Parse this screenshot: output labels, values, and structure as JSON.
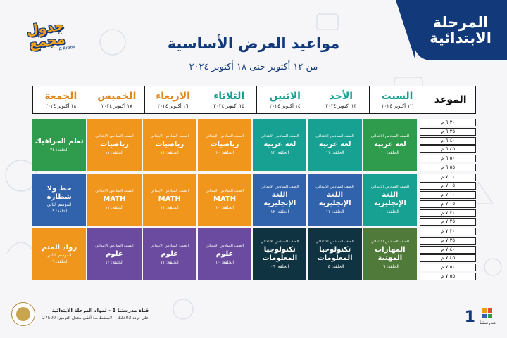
{
  "badge": {
    "line1": "المرحلة",
    "line2": "الابتدائية"
  },
  "logo": {
    "line1": "جدول",
    "line2": "مجمع",
    "line3": "A Arabic"
  },
  "title": "مواعيد العرض الأساسية",
  "subtitle": "من ١٢ أكتوبر حتى ١٨ أكتوبر ٢٠٢٤",
  "header": {
    "mawid": "الموعد",
    "days": [
      {
        "name": "السبت",
        "date": "١٢ أكتوبر ٢٠٢٤"
      },
      {
        "name": "الأحد",
        "date": "١٣ أكتوبر ٢٠٢٤"
      },
      {
        "name": "الاثنين",
        "date": "١٤ أكتوبر ٢٠٢٤"
      },
      {
        "name": "الثلاثاء",
        "date": "١٥ أكتوبر ٢٠٢٤"
      },
      {
        "name": "الاربعاء",
        "date": "١٦ أكتوبر ٢٠٢٤"
      },
      {
        "name": "الخميس",
        "date": "١٧ أكتوبر ٢٠٢٤"
      },
      {
        "name": "الجمعة",
        "date": "١٨ أكتوبر ٢٠٢٤"
      }
    ]
  },
  "colors": {
    "green": "#2e9c4c",
    "teal": "#17a192",
    "orange": "#f0961c",
    "purple": "#6a4ba0",
    "blue": "#3163ad",
    "navy": "#0f3340",
    "olive": "#4f7a3a"
  },
  "rows": [
    [
      {
        "grade": "الصف السادس الابتدائي",
        "subj": "لغة عربية",
        "extra": "",
        "ep": "الحلقة: ١٠",
        "color": "#2e9c4c"
      },
      {
        "grade": "الصف السادس الابتدائي",
        "subj": "لغة عربية",
        "extra": "",
        "ep": "الحلقة: ١١",
        "color": "#17a192"
      },
      {
        "grade": "الصف السادس الابتدائي",
        "subj": "لغة عربية",
        "extra": "",
        "ep": "الحلقة: ١٢",
        "color": "#17a192"
      },
      {
        "grade": "الصف السادس الابتدائي",
        "subj": "رياضيات",
        "extra": "",
        "ep": "الحلقة: ١٠",
        "color": "#f0961c"
      },
      {
        "grade": "الصف السادس الابتدائي",
        "subj": "رياضيات",
        "extra": "",
        "ep": "الحلقة: ١١",
        "color": "#f0961c"
      },
      {
        "grade": "الصف السادس الابتدائي",
        "subj": "رياضيات",
        "extra": "",
        "ep": "الحلقة: ١١",
        "color": "#f0961c"
      },
      {
        "grade": "",
        "subj": "تعلم الجرافيك",
        "extra": "",
        "ep": "الحلقة: ٣٤",
        "color": "#2e9c4c"
      }
    ],
    [
      {
        "grade": "الصف السادس الابتدائي",
        "subj": "اللغة الإنجليزية",
        "extra": "",
        "ep": "الحلقة: ١٠",
        "color": "#17a192"
      },
      {
        "grade": "الصف السادس الابتدائي",
        "subj": "اللغة الإنجليزية",
        "extra": "",
        "ep": "الحلقة: ١١",
        "color": "#3163ad"
      },
      {
        "grade": "الصف السادس الابتدائي",
        "subj": "اللغة الإنجليزية",
        "extra": "",
        "ep": "الحلقة: ١٢",
        "color": "#3163ad"
      },
      {
        "grade": "الصف السادس الابتدائي",
        "subj": "MATH",
        "extra": "",
        "ep": "الحلقة: ١٠",
        "color": "#f0961c"
      },
      {
        "grade": "الصف السادس الابتدائي",
        "subj": "MATH",
        "extra": "",
        "ep": "الحلقة: ١١",
        "color": "#f0961c"
      },
      {
        "grade": "الصف السادس الابتدائي",
        "subj": "MATH",
        "extra": "",
        "ep": "الحلقة: ١١",
        "color": "#f0961c"
      },
      {
        "grade": "",
        "subj": "حظ ولا شطارة",
        "extra": "الموسم الثاني",
        "ep": "الحلقة: ٠٩",
        "color": "#3163ad"
      }
    ],
    [
      {
        "grade": "الصف السادس الابتدائي",
        "subj": "المهارات المهنية",
        "extra": "",
        "ep": "الحلقة: ٠٦",
        "color": "#4f7a3a"
      },
      {
        "grade": "الصف السادس الابتدائي",
        "subj": "تكنولوجيا المعلومات",
        "extra": "",
        "ep": "الحلقة: ٠٥",
        "color": "#0f3340"
      },
      {
        "grade": "الصف السادس الابتدائي",
        "subj": "تكنولوجيا المعلومات",
        "extra": "",
        "ep": "الحلقة: ٠٦",
        "color": "#0f3340"
      },
      {
        "grade": "الصف السادس الابتدائي",
        "subj": "علوم",
        "extra": "",
        "ep": "الحلقة: ١٠",
        "color": "#6a4ba0"
      },
      {
        "grade": "الصف السادس الابتدائي",
        "subj": "علوم",
        "extra": "",
        "ep": "الحلقة: ١١",
        "color": "#6a4ba0"
      },
      {
        "grade": "الصف السادس الابتدائي",
        "subj": "علوم",
        "extra": "",
        "ep": "الحلقة: ١٢",
        "color": "#6a4ba0"
      },
      {
        "grade": "",
        "subj": "رواد المتم",
        "extra": "الموسم الثاني",
        "ep": "الحلقة: ٠٩",
        "color": "#f0961c"
      }
    ]
  ],
  "times": [
    [
      "٦:٣٠ م",
      "٦:٣٥ م",
      "٦:٤٠ م",
      "٦:٤٥ م",
      "٦:٥٠ م",
      "٦:٥٥ م"
    ],
    [
      "٧:٠٠ م",
      "٧:٠٥ م",
      "٧:١٠ م",
      "٧:١٥ م",
      "٧:٢٠ م",
      "٧:٢٥ م"
    ],
    [
      "٧:٣٠ م",
      "٧:٣٥ م",
      "٧:٤٠ م",
      "٧:٤٥ م",
      "٧:٥٠ م",
      "٧:٥٥ م"
    ]
  ],
  "footer": {
    "line1": "قناة مدرستنا 1 - لمواد المرحلة الابتدائية",
    "line2": "علي تردد 12303 - الاستقطاب: أفقي معدل الترميز: 27500",
    "one": "1",
    "mname": "مدرستنا"
  }
}
